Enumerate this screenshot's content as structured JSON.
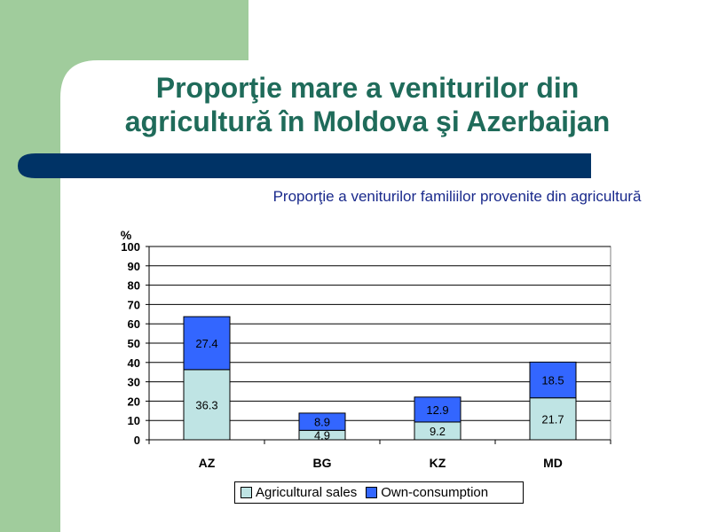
{
  "slide": {
    "title_line1": "Proporţie mare a veniturilor din",
    "title_line2": "agricultură în Moldova şi Azerbaijan",
    "colors": {
      "green_panel": "#a0cc9c",
      "title_color": "#1f6b5a",
      "bar_band": "#003366",
      "subtitle_color": "#1a2a8c"
    }
  },
  "chart_data": {
    "type": "bar",
    "stacked": true,
    "title": "Proporţie a veniturilor familiilor provenite din agricultură",
    "ylabel": "%",
    "xlabel": "",
    "ylim": [
      0,
      100
    ],
    "yticks": [
      0,
      10,
      20,
      30,
      40,
      50,
      60,
      70,
      80,
      90,
      100
    ],
    "grid": true,
    "legend_position": "bottom",
    "categories": [
      "AZ",
      "BG",
      "KZ",
      "MD"
    ],
    "series": [
      {
        "name": "Agricultural sales",
        "values": [
          36.3,
          4.9,
          9.2,
          21.7
        ],
        "color": "#bfe4e4"
      },
      {
        "name": "Own-consumption",
        "values": [
          27.4,
          8.9,
          12.9,
          18.5
        ],
        "color": "#3366ff"
      }
    ]
  }
}
